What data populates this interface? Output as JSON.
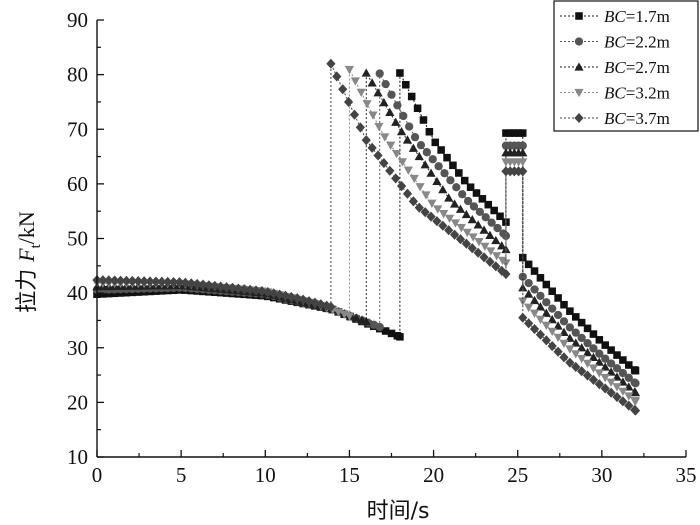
{
  "chart_data": {
    "type": "scatter",
    "xlabel": "时间/s",
    "ylabel_prefix": "拉力 ",
    "ylabel_var": "F",
    "ylabel_sub": "t",
    "ylabel_unit": "/kN",
    "xlim": [
      0,
      35
    ],
    "ylim": [
      10,
      90
    ],
    "xticks": [
      "0",
      "5",
      "10",
      "15",
      "20",
      "25",
      "30",
      "35"
    ],
    "yticks": [
      "10",
      "20",
      "30",
      "40",
      "50",
      "60",
      "70",
      "80",
      "90"
    ],
    "grid": false,
    "legend_position": "top-right",
    "series": [
      {
        "name_var": "BC",
        "name_val": "=1.7m",
        "marker": "square",
        "color": "#111111",
        "t1": 18.0,
        "t2": 24.3,
        "t3": 25.3,
        "tend": 32.0,
        "stage1": [
          [
            0,
            39.8
          ],
          [
            5,
            40.6
          ],
          [
            10,
            39.5
          ],
          [
            14,
            37.0
          ],
          [
            16,
            34.5
          ],
          [
            18,
            32.0
          ]
        ],
        "stage2": [
          [
            18.0,
            80.3
          ],
          [
            20,
            68
          ],
          [
            22,
            60
          ],
          [
            24.3,
            53.0
          ]
        ],
        "stage3": [
          [
            24.3,
            69.3
          ],
          [
            25.3,
            69.3
          ]
        ],
        "stage4": [
          [
            25.3,
            46.5
          ],
          [
            28,
            37
          ],
          [
            30,
            31
          ],
          [
            32,
            25.8
          ]
        ]
      },
      {
        "name_var": "BC",
        "name_val": "=2.2m",
        "marker": "circle",
        "color": "#555555",
        "t1": 16.8,
        "t2": 24.3,
        "t3": 25.3,
        "tend": 32.0,
        "stage1": [
          [
            0,
            40.6
          ],
          [
            5,
            41.0
          ],
          [
            10,
            39.8
          ],
          [
            14,
            37.0
          ],
          [
            16.8,
            33.8
          ]
        ],
        "stage2": [
          [
            16.8,
            80.2
          ],
          [
            19,
            68
          ],
          [
            22,
            57
          ],
          [
            24.3,
            50.5
          ]
        ],
        "stage3": [
          [
            24.3,
            67.0
          ],
          [
            25.3,
            67.0
          ]
        ],
        "stage4": [
          [
            25.3,
            43.0
          ],
          [
            28,
            34
          ],
          [
            30,
            28.5
          ],
          [
            32,
            23.5
          ]
        ]
      },
      {
        "name_var": "BC",
        "name_val": "=2.7m",
        "marker": "triangle-up",
        "color": "#222222",
        "t1": 16.0,
        "t2": 24.3,
        "t3": 25.3,
        "tend": 32.0,
        "stage1": [
          [
            0,
            41.2
          ],
          [
            5,
            41.4
          ],
          [
            10,
            40.0
          ],
          [
            14,
            37.0
          ],
          [
            16.0,
            34.8
          ]
        ],
        "stage2": [
          [
            16.0,
            80.3
          ],
          [
            18,
            70
          ],
          [
            21,
            57
          ],
          [
            24.3,
            48.0
          ]
        ],
        "stage3": [
          [
            24.3,
            65.7
          ],
          [
            25.3,
            65.7
          ]
        ],
        "stage4": [
          [
            25.3,
            41.0
          ],
          [
            28,
            32
          ],
          [
            30,
            27
          ],
          [
            32,
            21.8
          ]
        ]
      },
      {
        "name_var": "BC",
        "name_val": "=3.2m",
        "marker": "triangle-down",
        "color": "#888888",
        "t1": 15.0,
        "t2": 24.3,
        "t3": 25.3,
        "tend": 32.0,
        "stage1": [
          [
            0,
            41.8
          ],
          [
            5,
            41.7
          ],
          [
            10,
            40.3
          ],
          [
            13,
            38.0
          ],
          [
            15.0,
            35.8
          ]
        ],
        "stage2": [
          [
            15.0,
            80.9
          ],
          [
            17,
            69
          ],
          [
            20,
            56
          ],
          [
            24.3,
            45.5
          ]
        ],
        "stage3": [
          [
            24.3,
            64.0
          ],
          [
            25.3,
            64.0
          ]
        ],
        "stage4": [
          [
            25.3,
            38.5
          ],
          [
            28,
            30
          ],
          [
            30,
            25
          ],
          [
            32,
            20.2
          ]
        ]
      },
      {
        "name_var": "BC",
        "name_val": "=3.7m",
        "marker": "diamond",
        "color": "#444444",
        "t1": 13.9,
        "t2": 24.3,
        "t3": 25.3,
        "tend": 32.0,
        "stage1": [
          [
            0,
            42.4
          ],
          [
            5,
            42.0
          ],
          [
            10,
            40.3
          ],
          [
            12,
            39.0
          ],
          [
            13.9,
            37.5
          ]
        ],
        "stage2": [
          [
            13.9,
            82.0
          ],
          [
            16,
            68
          ],
          [
            19,
            56
          ],
          [
            24.3,
            43.5
          ]
        ],
        "stage3": [
          [
            24.3,
            62.3
          ],
          [
            25.3,
            62.3
          ]
        ],
        "stage4": [
          [
            25.3,
            35.5
          ],
          [
            28,
            27.5
          ],
          [
            30,
            23
          ],
          [
            32,
            18.5
          ]
        ]
      }
    ]
  }
}
